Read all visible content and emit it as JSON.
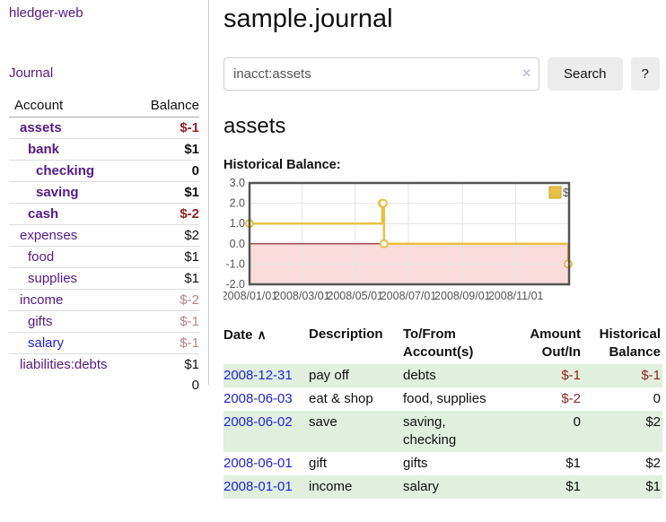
{
  "app": {
    "title": "hledger-web"
  },
  "colors": {
    "link_purple": "#541a8b",
    "link_blue": "#2222dd",
    "negative_strong": "#942222",
    "negative_soft": "#c17f7f",
    "row_green": "#e0efde",
    "series_gold": "#e9c043",
    "legend_border": "#c9a32a",
    "negative_region_pink": "#fbdcdc",
    "zero_line_red": "#8b1c1c",
    "grid_gray": "#e4e4e4",
    "plot_border": "#545454"
  },
  "sidebar": {
    "journal_link": "Journal",
    "accounts_table": {
      "headers": [
        "Account",
        "Balance"
      ],
      "rows": [
        {
          "name": "assets",
          "depth": 1,
          "bold": true,
          "link_color": "purple",
          "balance": "$-1",
          "balance_color": "negative-strong"
        },
        {
          "name": "bank",
          "depth": 2,
          "bold": true,
          "link_color": "purple",
          "balance": "$1",
          "balance_color": "normal"
        },
        {
          "name": "checking",
          "depth": 3,
          "bold": true,
          "link_color": "purple",
          "balance": "0",
          "balance_color": "normal"
        },
        {
          "name": "saving",
          "depth": 3,
          "bold": true,
          "link_color": "purple",
          "balance": "$1",
          "balance_color": "normal"
        },
        {
          "name": "cash",
          "depth": 2,
          "bold": true,
          "link_color": "purple",
          "balance": "$-2",
          "balance_color": "negative-strong"
        },
        {
          "name": "expenses",
          "depth": 1,
          "bold": false,
          "link_color": "purple",
          "balance": "$2",
          "balance_color": "normal"
        },
        {
          "name": "food",
          "depth": 2,
          "bold": false,
          "link_color": "purple",
          "balance": "$1",
          "balance_color": "normal"
        },
        {
          "name": "supplies",
          "depth": 2,
          "bold": false,
          "link_color": "purple",
          "balance": "$1",
          "balance_color": "normal"
        },
        {
          "name": "income",
          "depth": 1,
          "bold": false,
          "link_color": "purple",
          "balance": "$-2",
          "balance_color": "negative-soft"
        },
        {
          "name": "gifts",
          "depth": 2,
          "bold": false,
          "link_color": "purple",
          "balance": "$-1",
          "balance_color": "negative-soft"
        },
        {
          "name": "salary",
          "depth": 2,
          "bold": false,
          "link_color": "blue",
          "balance": "$-1",
          "balance_color": "negative-soft"
        },
        {
          "name": "liabilities:debts",
          "depth": 1,
          "bold": false,
          "link_color": "purple",
          "balance": "$1",
          "balance_color": "normal"
        }
      ],
      "total": "0"
    }
  },
  "main": {
    "title": "sample.journal",
    "search": {
      "value": "inacct:assets",
      "clear_icon": "✕",
      "button_label": "Search",
      "help_label": "?"
    },
    "account_heading": "assets",
    "chart_label": "Historical Balance:",
    "table": {
      "headers": [
        "Date",
        "Description",
        "To/From Account(s)",
        "Amount Out/In",
        "Historical Balance"
      ],
      "sort_icon": "∧",
      "rows": [
        {
          "date": "2008-12-31",
          "description": "pay off",
          "accounts": "debts",
          "amount": "$-1",
          "amount_negative": true,
          "balance": "$-1",
          "balance_negative": true
        },
        {
          "date": "2008-06-03",
          "description": "eat & shop",
          "accounts": "food, supplies",
          "amount": "$-2",
          "amount_negative": true,
          "balance": "0",
          "balance_negative": false
        },
        {
          "date": "2008-06-02",
          "description": "save",
          "accounts": "saving,\nchecking",
          "amount": "0",
          "amount_negative": false,
          "balance": "$2",
          "balance_negative": false
        },
        {
          "date": "2008-06-01",
          "description": "gift",
          "accounts": "gifts",
          "amount": "$1",
          "amount_negative": false,
          "balance": "$2",
          "balance_negative": false
        },
        {
          "date": "2008-01-01",
          "description": "income",
          "accounts": "salary",
          "amount": "$1",
          "amount_negative": false,
          "balance": "$1",
          "balance_negative": false
        }
      ]
    }
  },
  "chart_data": {
    "type": "line",
    "title": "Historical Balance",
    "step": true,
    "series": [
      {
        "name": "$",
        "color": "#e9c043",
        "points": [
          [
            "2008-01-01",
            1
          ],
          [
            "2008-06-01",
            2
          ],
          [
            "2008-06-02",
            2
          ],
          [
            "2008-06-03",
            0
          ],
          [
            "2008-12-31",
            -1
          ]
        ]
      }
    ],
    "x_ticks": [
      "2008/01/01",
      "2008/03/01",
      "2008/05/01",
      "2008/07/01",
      "2008/09/01",
      "2008/11/01"
    ],
    "y_ticks": [
      3.0,
      2.0,
      1.0,
      0.0,
      -1.0,
      -2.0
    ],
    "xlim": [
      "2008-01-01",
      "2009-01-01"
    ],
    "ylim": [
      -2,
      3
    ],
    "grid": true,
    "legend_position": "top-right",
    "negative_region_color": "#fbdcdc",
    "zero_line_color": "#8b1c1c"
  }
}
